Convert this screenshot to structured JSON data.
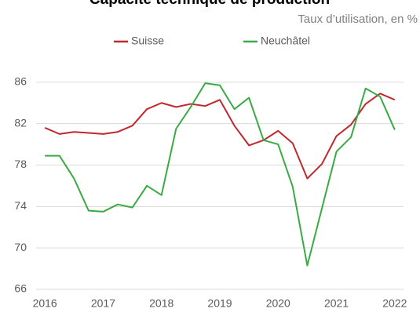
{
  "chart_data": {
    "type": "line",
    "title": "Capacité technique de production",
    "subtitle": "Taux d’utilisation, en %",
    "x": [
      2016,
      2016.25,
      2016.5,
      2016.75,
      2017,
      2017.25,
      2017.5,
      2017.75,
      2018,
      2018.25,
      2018.5,
      2018.75,
      2019,
      2019.25,
      2019.5,
      2019.75,
      2020,
      2020.25,
      2020.5,
      2020.75,
      2021,
      2021.25,
      2021.5,
      2021.75,
      2022
    ],
    "series": [
      {
        "name": "Suisse",
        "color": "#c0282d",
        "values": [
          81.6,
          81.0,
          81.2,
          81.1,
          81.0,
          81.2,
          81.8,
          83.4,
          84.0,
          83.6,
          83.9,
          83.7,
          84.3,
          81.8,
          79.9,
          80.4,
          81.3,
          80.1,
          76.7,
          78.1,
          80.8,
          81.9,
          83.9,
          84.9,
          84.3
        ]
      },
      {
        "name": "Neuchâtel",
        "color": "#3aaa45",
        "values": [
          78.9,
          78.9,
          76.7,
          73.6,
          73.5,
          74.2,
          73.9,
          76.0,
          75.1,
          81.5,
          83.6,
          85.9,
          85.7,
          83.4,
          84.5,
          80.4,
          80.0,
          75.9,
          68.3,
          73.8,
          79.3,
          80.7,
          85.4,
          84.6,
          81.4
        ]
      }
    ],
    "xlim": [
      2015.85,
      2022.15
    ],
    "xticks": [
      2016,
      2017,
      2018,
      2019,
      2020,
      2021,
      2022
    ],
    "ylim": [
      66,
      87.5
    ],
    "yticks": [
      66,
      70,
      74,
      78,
      82,
      86
    ],
    "grid": true,
    "legend": "top"
  }
}
